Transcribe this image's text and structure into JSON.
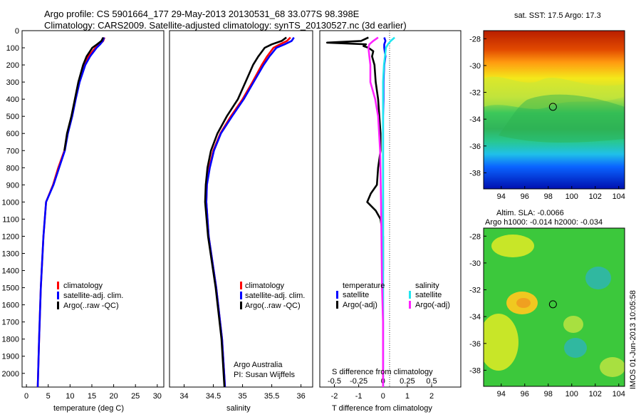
{
  "title_line1": "Argo profile: CS 5901664_177 29-May-2013 20130531_68 33.077S 98.398E",
  "title_line2": "Climatology: CARS2009. Satellite-adjusted climatology: synTS_20130527.nc (3d earlier)",
  "depth_ticks": [
    "0",
    "100",
    "200",
    "300",
    "400",
    "500",
    "600",
    "700",
    "800",
    "900",
    "1000",
    "1100",
    "1200",
    "1300",
    "1400",
    "1500",
    "1600",
    "1700",
    "1800",
    "1900",
    "2000"
  ],
  "colors": {
    "climatology": "#ff0000",
    "satellite": "#0000ff",
    "argo": "#000000",
    "sal_sat": "#22e6f0",
    "sal_argo": "#ff22ff"
  },
  "chart_data": [
    {
      "id": "temperature",
      "type": "line",
      "xlabel": "temperature (deg C)",
      "xlim": [
        -1,
        31.5
      ],
      "xticks": [
        "0",
        "5",
        "10",
        "15",
        "20",
        "25",
        "30"
      ],
      "ylim": [
        0,
        2080
      ],
      "legend": [
        "climatology",
        "satellite-adj. clim.",
        "Argo(..raw -QC)"
      ],
      "series": [
        {
          "name": "climatology",
          "depth": [
            40,
            60,
            80,
            100,
            150,
            200,
            300,
            400,
            500,
            600,
            700,
            800,
            900,
            1000,
            1200,
            1500,
            1800,
            2080
          ],
          "values": [
            17.9,
            17.6,
            16.8,
            15.8,
            14.2,
            13.2,
            12,
            11.2,
            10.4,
            9.4,
            8.7,
            7.3,
            6.1,
            4.5,
            3.9,
            3.3,
            2.9,
            2.6
          ]
        },
        {
          "name": "satellite-adj. clim.",
          "depth": [
            40,
            60,
            80,
            100,
            150,
            200,
            300,
            400,
            500,
            600,
            700,
            800,
            900,
            1000,
            1200,
            1500,
            1800,
            2080
          ],
          "values": [
            17.8,
            17.5,
            16.9,
            16.1,
            14.6,
            13.5,
            12.2,
            11.3,
            10.5,
            9.5,
            8.8,
            7.5,
            6.2,
            4.5,
            3.9,
            3.3,
            2.9,
            2.6
          ]
        },
        {
          "name": "Argo(..raw -QC)",
          "depth": [
            40,
            60,
            80,
            100,
            150,
            200,
            300,
            400,
            500,
            600,
            700
          ],
          "values": [
            17.6,
            17.2,
            16.2,
            15.1,
            13.8,
            13,
            11.9,
            11.1,
            10.3,
            9.3,
            8.7
          ]
        }
      ]
    },
    {
      "id": "salinity",
      "type": "line",
      "xlabel": "salinity",
      "xlim": [
        33.75,
        36.2
      ],
      "xticks": [
        "34",
        "34.5",
        "35",
        "35.5",
        "36"
      ],
      "ylim": [
        0,
        2080
      ],
      "legend": [
        "climatology",
        "satellite-adj. clim.",
        "Argo(..raw -QC)"
      ],
      "annotation": [
        "Argo Australia",
        "PI: Susan Wijffels"
      ],
      "series": [
        {
          "name": "climatology",
          "depth": [
            40,
            60,
            80,
            100,
            150,
            200,
            300,
            400,
            500,
            600,
            700,
            800,
            900,
            1000,
            1200,
            1500,
            1800,
            2080
          ],
          "values": [
            35.82,
            35.76,
            35.64,
            35.53,
            35.42,
            35.33,
            35.17,
            35.0,
            34.8,
            34.62,
            34.5,
            34.43,
            34.39,
            34.38,
            34.42,
            34.55,
            34.65,
            34.7
          ]
        },
        {
          "name": "satellite-adj. clim.",
          "depth": [
            40,
            60,
            80,
            100,
            150,
            200,
            300,
            400,
            500,
            600,
            700,
            800,
            900,
            1000,
            1200,
            1500,
            1800,
            2080
          ],
          "values": [
            35.88,
            35.84,
            35.72,
            35.58,
            35.46,
            35.36,
            35.19,
            35.02,
            34.82,
            34.63,
            34.51,
            34.44,
            34.39,
            34.38,
            34.42,
            34.55,
            34.65,
            34.7
          ]
        },
        {
          "name": "Argo(..raw -QC)",
          "depth": [
            40,
            60,
            80,
            100,
            150,
            200,
            300,
            400,
            500,
            600,
            700,
            800,
            900,
            1000,
            1200,
            1500,
            1800,
            2080
          ],
          "values": [
            35.75,
            35.67,
            35.5,
            35.38,
            35.27,
            35.18,
            35.05,
            34.92,
            34.73,
            34.57,
            34.46,
            34.4,
            34.37,
            34.36,
            34.41,
            34.54,
            34.64,
            34.69
          ]
        }
      ]
    },
    {
      "id": "difference",
      "type": "line",
      "xlabel": "T difference from climatology",
      "xlabel_top": "S difference from climatology",
      "xlim": [
        -2.6,
        3.2
      ],
      "xticks": [
        "-2",
        "-1",
        "0",
        "1",
        "2"
      ],
      "xticks_top": [
        "-0.5",
        "-0.25",
        "0",
        "0.25",
        "0.5"
      ],
      "ylim": [
        0,
        2080
      ],
      "legend_headers": [
        "temperature",
        "salinity"
      ],
      "legend": [
        "satellite",
        "Argo(-adj)",
        "satellite",
        "Argo(-adj)"
      ],
      "series": [
        {
          "name": "T satellite",
          "depth": [
            40,
            60,
            80,
            100,
            150,
            200,
            300,
            400,
            500,
            700,
            1000,
            1500,
            2080
          ],
          "values": [
            0.05,
            0.1,
            0.05,
            0.05,
            0.1,
            0.05,
            0.02,
            0.02,
            0,
            0,
            0,
            0,
            0
          ]
        },
        {
          "name": "T Argo(-adj)",
          "depth": [
            40,
            60,
            70,
            80,
            90,
            100,
            120,
            150,
            200,
            300,
            400,
            500,
            600,
            700,
            800,
            900,
            950,
            1000,
            1050,
            1100,
            1200,
            1300,
            1400
          ],
          "values": [
            -0.6,
            -0.9,
            -2.3,
            -0.7,
            -0.8,
            -0.6,
            -0.4,
            -0.45,
            -0.35,
            -0.3,
            -0.2,
            -0.15,
            -0.1,
            -0.1,
            -0.2,
            -0.25,
            -0.5,
            -0.65,
            -0.3,
            -0.1,
            0,
            0,
            0
          ]
        },
        {
          "name": "S satellite",
          "depth": [
            40,
            60,
            80,
            100,
            150,
            200,
            300,
            400,
            500,
            700,
            1000,
            1500,
            2080
          ],
          "values": [
            0.12,
            0.08,
            0.05,
            0.03,
            0.02,
            0.01,
            0,
            0,
            0,
            0,
            0,
            0,
            0
          ]
        },
        {
          "name": "S Argo(-adj)",
          "depth": [
            40,
            60,
            80,
            100,
            150,
            200,
            300,
            400,
            500,
            700,
            1000,
            1500,
            1700,
            2080
          ],
          "values": [
            -0.05,
            -0.1,
            -0.14,
            -0.15,
            -0.14,
            -0.13,
            -0.13,
            -0.08,
            -0.05,
            -0.03,
            -0.02,
            -0.01,
            0,
            0
          ]
        }
      ]
    }
  ],
  "map_sst": {
    "title": "sat. SST: 17.5 Argo: 17.3",
    "xticks": [
      "94",
      "96",
      "98",
      "100",
      "102",
      "104"
    ],
    "yticks": [
      "-28",
      "-30",
      "-32",
      "-34",
      "-36",
      "-38"
    ],
    "float_lon": 98.4,
    "float_lat": -33.08
  },
  "map_sla": {
    "title_line1": "Altim. SLA: -0.0066",
    "title_line2": "Argo h1000: -0.014 h2000: -0.034",
    "xticks": [
      "94",
      "96",
      "98",
      "100",
      "102",
      "104"
    ],
    "yticks": [
      "-28",
      "-30",
      "-32",
      "-34",
      "-36",
      "-38"
    ],
    "float_lon": 98.4,
    "float_lat": -33.08
  },
  "stamp": "IMOS 01-Jun-2013 10:05:58"
}
